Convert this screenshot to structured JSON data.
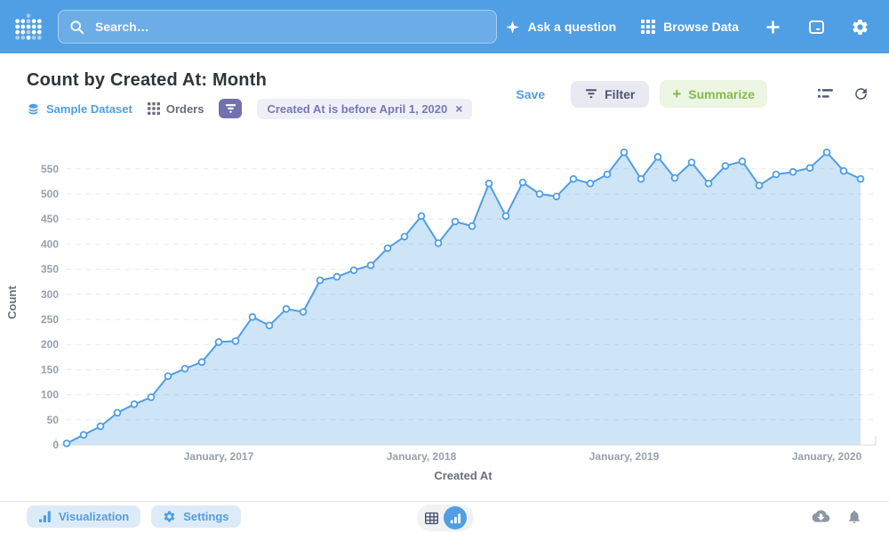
{
  "header": {
    "search_placeholder": "Search…",
    "ask_question_label": "Ask a question",
    "browse_data_label": "Browse Data"
  },
  "question": {
    "title": "Count by Created At: Month",
    "source": "Sample Dataset",
    "table": "Orders",
    "filter_pill": "Created At is before April 1, 2020",
    "save_label": "Save",
    "filter_label": "Filter",
    "summarize_label": "Summarize",
    "summarize_plus": "+",
    "pill_close": "×"
  },
  "footer": {
    "visualization_label": "Visualization",
    "settings_label": "Settings"
  },
  "colors": {
    "brand_blue": "#509EE3",
    "purple": "#7172AD",
    "green": "#84BB4C",
    "title_text": "#2E353B",
    "muted_text": "#696E7B",
    "axis_text": "#97A0AC"
  },
  "icon_names": [
    "metabase-logo",
    "search-icon",
    "star-icon",
    "grid-icon",
    "plus-icon",
    "frame-icon",
    "gear-icon",
    "database-icon",
    "table-grid-icon",
    "funnel-icon",
    "close-icon",
    "list-icon",
    "refresh-icon",
    "bar-chart-icon",
    "table-icon",
    "cloud-download-icon",
    "bell-icon"
  ],
  "chart_data": {
    "type": "area",
    "title": "Count by Created At: Month",
    "xlabel": "Created At",
    "ylabel": "Count",
    "grid": true,
    "legend": "none",
    "line_color": "#509EE3",
    "fill_color": "rgba(80,158,227,0.28)",
    "ylim": [
      0,
      595
    ],
    "y_ticks": [
      0,
      50,
      100,
      150,
      200,
      250,
      300,
      350,
      400,
      450,
      500,
      550
    ],
    "x_tick_labels": [
      "January, 2017",
      "January, 2018",
      "January, 2019",
      "January, 2020"
    ],
    "x_tick_positions": [
      9,
      21,
      33,
      45
    ],
    "x": [
      "April 2016",
      "May 2016",
      "June 2016",
      "July 2016",
      "August 2016",
      "September 2016",
      "October 2016",
      "November 2016",
      "December 2016",
      "January 2017",
      "February 2017",
      "March 2017",
      "April 2017",
      "May 2017",
      "June 2017",
      "July 2017",
      "August 2017",
      "September 2017",
      "October 2017",
      "November 2017",
      "December 2017",
      "January 2018",
      "February 2018",
      "March 2018",
      "April 2018",
      "May 2018",
      "June 2018",
      "July 2018",
      "August 2018",
      "September 2018",
      "October 2018",
      "November 2018",
      "December 2018",
      "January 2019",
      "February 2019",
      "March 2019",
      "April 2019",
      "May 2019",
      "June 2019",
      "July 2019",
      "August 2019",
      "September 2019",
      "October 2019",
      "November 2019",
      "December 2019",
      "January 2020",
      "February 2020",
      "March 2020"
    ],
    "values": [
      3,
      20,
      37,
      64,
      81,
      95,
      137,
      152,
      165,
      205,
      207,
      255,
      238,
      271,
      265,
      328,
      335,
      348,
      358,
      392,
      415,
      456,
      402,
      445,
      436,
      521,
      456,
      523,
      500,
      495,
      530,
      521,
      539,
      583,
      530,
      574,
      532,
      563,
      521,
      556,
      565,
      517,
      539,
      544,
      552,
      583,
      546,
      530
    ]
  }
}
